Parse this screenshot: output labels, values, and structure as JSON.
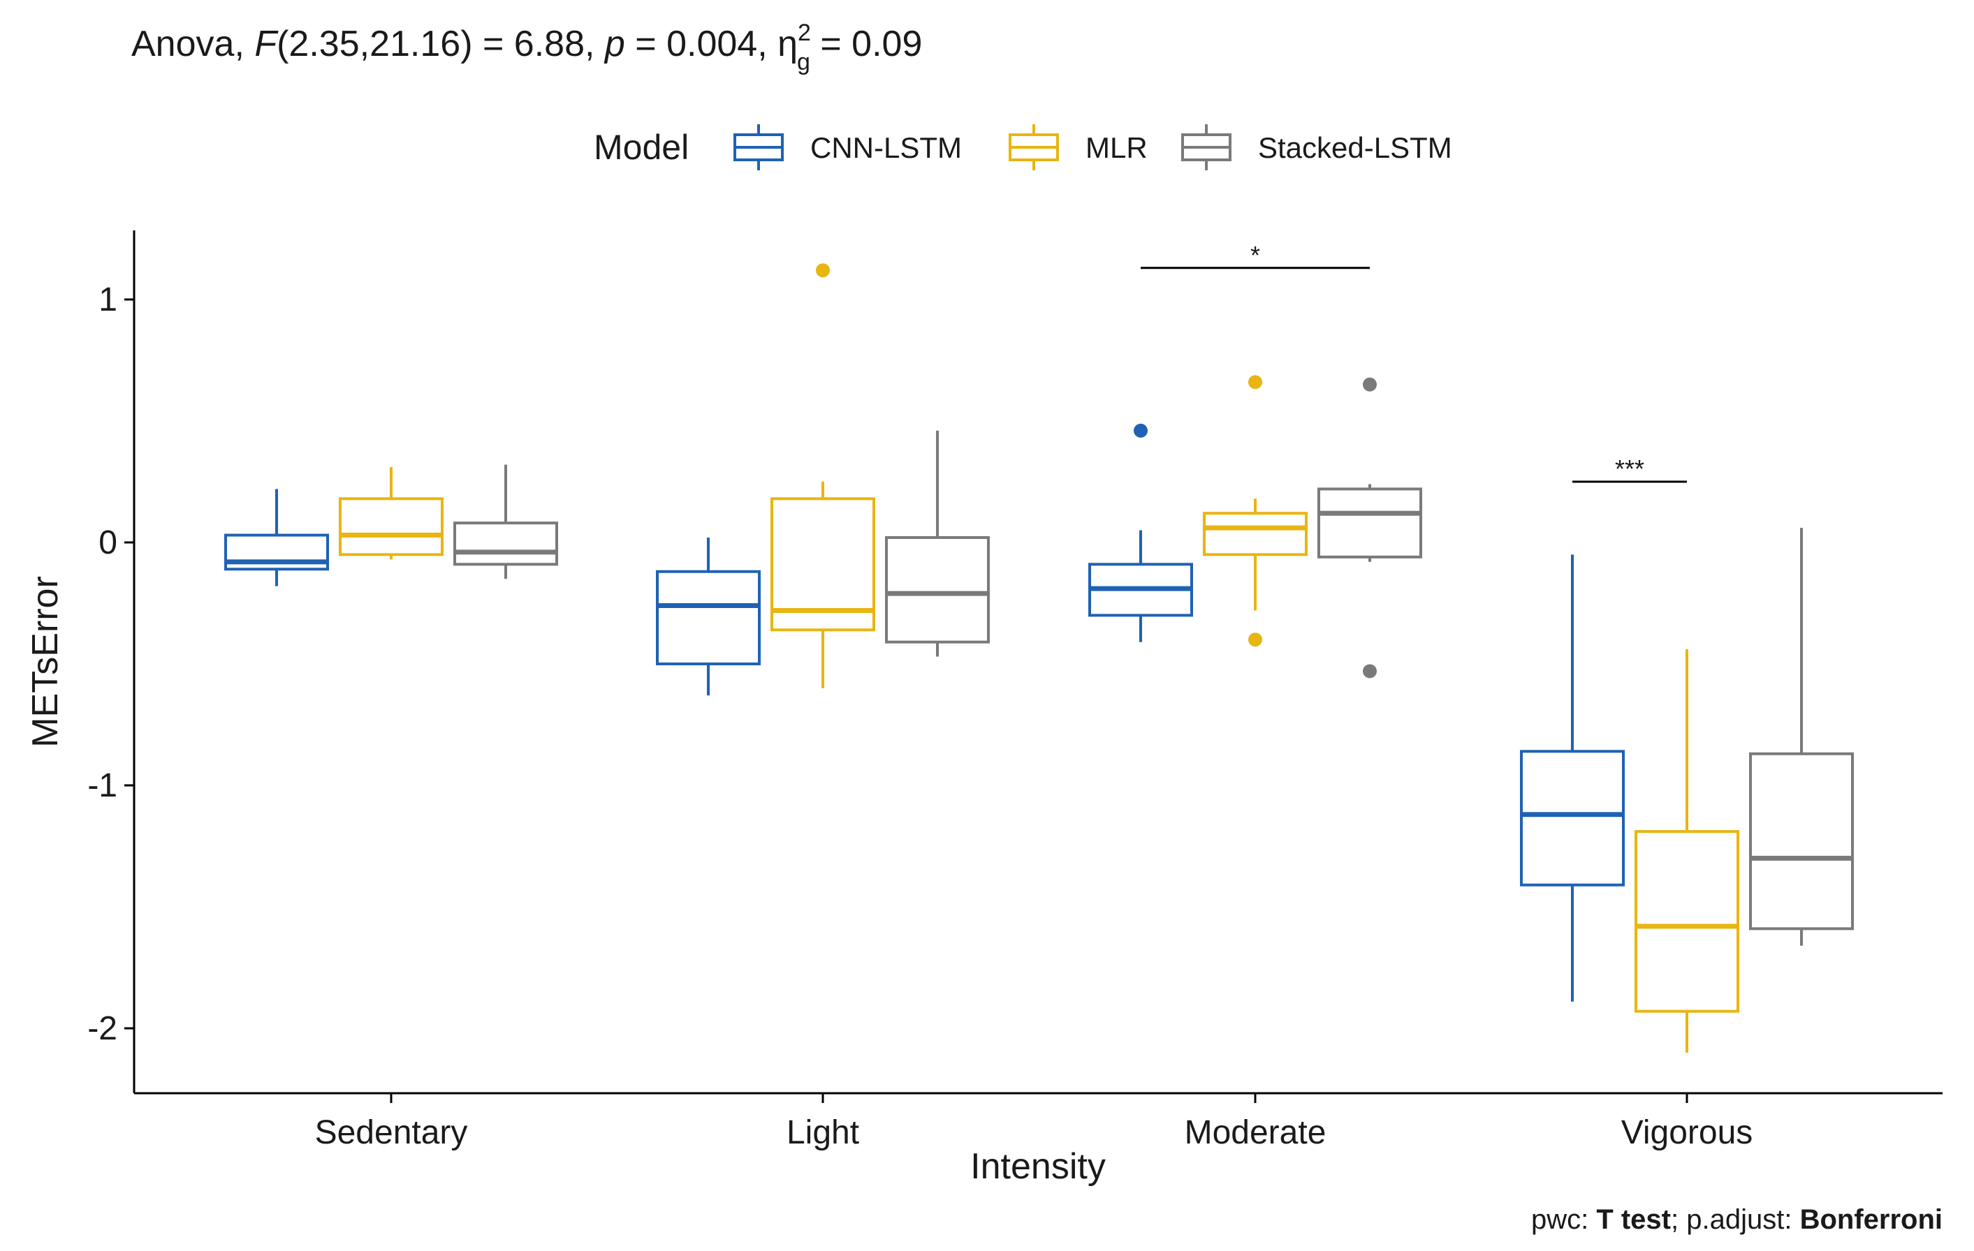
{
  "chart_data": {
    "type": "box",
    "title": {
      "prefix": "Anova, ",
      "stat_name": "F",
      "df": "(2.35,21.16)",
      "stat_value": " = 6.88, ",
      "p_symbol": "p",
      "p_value": " = 0.004, ",
      "effect_symbol": "η",
      "effect_sub": "g",
      "effect_sup": "2",
      "effect_value": " = 0.09"
    },
    "legend": {
      "title": "Model",
      "position": "top",
      "items": [
        {
          "name": "CNN-LSTM",
          "color": "#1f62b4"
        },
        {
          "name": "MLR",
          "color": "#e8b511"
        },
        {
          "name": "Stacked-LSTM",
          "color": "#7a7a7a"
        }
      ]
    },
    "xlabel": "Intensity",
    "ylabel": "METsError",
    "ylim": [
      -2.25,
      1.3
    ],
    "yticks": [
      1,
      0,
      -1,
      -2
    ],
    "ytick_labels": [
      "1",
      "0",
      "-1",
      "-2"
    ],
    "categories": [
      "Sedentary",
      "Light",
      "Moderate",
      "Vigorous"
    ],
    "series": [
      {
        "name": "CNN-LSTM",
        "color": "#1f62b4",
        "boxes": [
          {
            "q1": -0.11,
            "median": -0.08,
            "q3": 0.03,
            "whisker_low": -0.18,
            "whisker_high": 0.22,
            "outliers": []
          },
          {
            "q1": -0.5,
            "median": -0.26,
            "q3": -0.12,
            "whisker_low": -0.63,
            "whisker_high": 0.02,
            "outliers": []
          },
          {
            "q1": -0.3,
            "median": -0.19,
            "q3": -0.09,
            "whisker_low": -0.41,
            "whisker_high": 0.05,
            "outliers": [
              0.46
            ]
          },
          {
            "q1": -1.41,
            "median": -1.12,
            "q3": -0.86,
            "whisker_low": -1.89,
            "whisker_high": -0.05,
            "outliers": []
          }
        ]
      },
      {
        "name": "MLR",
        "color": "#e8b511",
        "boxes": [
          {
            "q1": -0.05,
            "median": 0.03,
            "q3": 0.18,
            "whisker_low": -0.07,
            "whisker_high": 0.31,
            "outliers": []
          },
          {
            "q1": -0.36,
            "median": -0.28,
            "q3": 0.18,
            "whisker_low": -0.6,
            "whisker_high": 0.25,
            "outliers": [
              1.12
            ]
          },
          {
            "q1": -0.05,
            "median": 0.06,
            "q3": 0.12,
            "whisker_low": -0.28,
            "whisker_high": 0.18,
            "outliers": [
              0.66,
              -0.4
            ]
          },
          {
            "q1": -1.93,
            "median": -1.58,
            "q3": -1.19,
            "whisker_low": -2.1,
            "whisker_high": -0.44,
            "outliers": []
          }
        ]
      },
      {
        "name": "Stacked-LSTM",
        "color": "#7a7a7a",
        "boxes": [
          {
            "q1": -0.09,
            "median": -0.04,
            "q3": 0.08,
            "whisker_low": -0.15,
            "whisker_high": 0.32,
            "outliers": []
          },
          {
            "q1": -0.41,
            "median": -0.21,
            "q3": 0.02,
            "whisker_low": -0.47,
            "whisker_high": 0.46,
            "outliers": []
          },
          {
            "q1": -0.06,
            "median": 0.12,
            "q3": 0.22,
            "whisker_low": -0.08,
            "whisker_high": 0.24,
            "outliers": [
              0.65,
              -0.53
            ]
          },
          {
            "q1": -1.59,
            "median": -1.3,
            "q3": -0.87,
            "whisker_low": -1.66,
            "whisker_high": 0.06,
            "outliers": []
          }
        ]
      }
    ],
    "annotations": [
      {
        "label": "*",
        "category": "Moderate",
        "from_series": "CNN-LSTM",
        "to_series": "Stacked-LSTM",
        "y": 1.13
      },
      {
        "label": "***",
        "category": "Vigorous",
        "from_series": "CNN-LSTM",
        "to_series": "MLR",
        "y": 0.25
      }
    ],
    "caption": {
      "pwc_prefix": "pwc: ",
      "pwc_value": "T test",
      "adjust_prefix": "; p.adjust: ",
      "adjust_value": "Bonferroni"
    }
  }
}
